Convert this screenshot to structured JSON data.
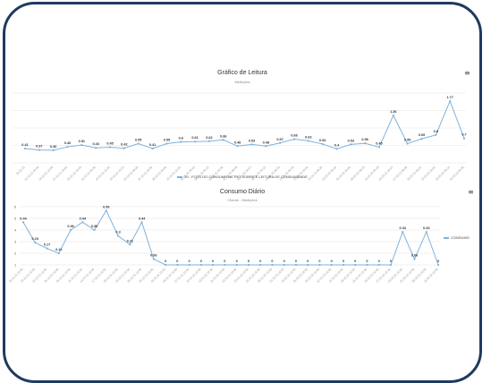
{
  "chart_data": [
    {
      "type": "line",
      "title": "Gráfico de Leitura",
      "subtitle": "Medições",
      "series": [
        {
          "name": "19 - FOTO DO CONSUMIVMETRO SOBRE E LEITURA DE CONSUMIDADE",
          "values": [
            0.41,
            0.37,
            0.36,
            0.46,
            0.51,
            0.43,
            0.45,
            0.42,
            0.55,
            0.41,
            0.55,
            0.6,
            0.61,
            0.62,
            0.66,
            0.48,
            0.53,
            0.48,
            0.57,
            0.68,
            0.63,
            0.54,
            0.4,
            0.53,
            0.56,
            0.45,
            1.36,
            0.55,
            0.69,
            0.8,
            1.77,
            0.7
          ]
        }
      ],
      "data_labels": [
        "0.41",
        "0.37",
        "0.36",
        "0.46",
        "0.51",
        "0.43",
        "0.45",
        "0.42",
        "0.55",
        "0.41",
        "0.55",
        "0.6",
        "0.61",
        "0.62",
        "0.66",
        "0.48",
        "0.53",
        "0.48",
        "0.57",
        "0.68",
        "0.63",
        "0.54",
        "0.4",
        "0.53",
        "0.56",
        "0.45",
        "1.36",
        "0.55",
        "0.69",
        "0.8",
        "1.77",
        "0.7"
      ],
      "categories": [
        "28.11.21",
        "01.12.21 09:06",
        "04.12.21 12:00",
        "07.12.21 13:02",
        "10.12.21 09:45",
        "13.12.21 09:30",
        "16.12.21 11:20",
        "19.12.21 12:14",
        "22.12.21 08:40",
        "25.12.21 10:20",
        "28.12.21 09:00",
        "31.12.21 11:05",
        "03.01.22 08:44",
        "06.01.22 09:12",
        "09.01.22 10:30",
        "12.01.22 08:59",
        "15.01.22 09:27",
        "18.01.22 10:12",
        "21.01.22 08:50",
        "24.01.22 09:33",
        "27.01.22 10:02",
        "30.01.22 08:20",
        "02.02.22 09:10",
        "05.02.22 10:40",
        "08.02.22 08:55",
        "11.02.22 09:18",
        "14.02.22 10:47",
        "17.02.22 08:39",
        "20.02.22 09:51",
        "23.02.22 10:05",
        "26.02.22 08:14",
        "01.03.22 09:30"
      ],
      "ylim": [
        0,
        2
      ],
      "grid": true,
      "legend": "bottom"
    },
    {
      "type": "line",
      "title": "Consumo Diário",
      "subtitle": "Cliente - Medições",
      "series": [
        {
          "name": "CONSUMO",
          "values": [
            0.44,
            0.23,
            0.17,
            0.12,
            0.36,
            0.44,
            0.36,
            0.56,
            0.3,
            0.21,
            0.44,
            0.06,
            0,
            0,
            0,
            0,
            0,
            0,
            0,
            0,
            0,
            0,
            0,
            0,
            0,
            0,
            0,
            0,
            0,
            0,
            0,
            0,
            0.34,
            0.06,
            0.34,
            0
          ]
        }
      ],
      "data_labels": [
        "0.44",
        "0.23",
        "0.17",
        "0.12",
        "0.36",
        "0.44",
        "0.36",
        "0.56",
        "0.3",
        "0.21",
        "0.44",
        "0.06",
        "0",
        "0",
        "0",
        "0",
        "0",
        "0",
        "0",
        "0",
        "0",
        "0",
        "0",
        "0",
        "0",
        "0",
        "0",
        "0",
        "0",
        "0",
        "0",
        "0",
        "0.34",
        "0.06",
        "0.34",
        "0"
      ],
      "categories": [
        "26.11.21 12:00",
        "29.11.21 12:00",
        "02.12.21 12:00",
        "05.12.21 12:00",
        "08.12.21 12:00",
        "11.12.21 12:00",
        "14.12.21 12:00",
        "17.12.21 12:00",
        "20.12.21 12:00",
        "23.12.21 12:00",
        "26.12.21 12:00",
        "29.12.21 12:00",
        "01.01.22 12:00",
        "04.01.22 12:00",
        "07.01.22 12:00",
        "10.01.22 12:00",
        "13.01.22 12:00",
        "16.01.22 12:00",
        "19.01.22 12:00",
        "22.01.22 12:00",
        "25.01.22 12:00",
        "28.01.22 12:00",
        "31.01.22 12:00",
        "03.02.22 12:00",
        "06.02.22 12:00",
        "09.02.22 12:00",
        "12.02.22 12:00",
        "15.02.22 12:00",
        "18.02.22 12:00",
        "21.02.22 12:00",
        "24.02.22 12:00",
        "27.02.22 12:00",
        "02.03.22 12:00",
        "05.03.22 12:00",
        "08.03.22 12:00",
        "11.03.22 12:00"
      ],
      "yticks": [
        "1",
        "2",
        "3",
        "4",
        "5",
        "6"
      ],
      "ylim": [
        0,
        0.6
      ],
      "grid": true,
      "legend": "right"
    }
  ],
  "menu_icon": "hamburger-menu-icon",
  "colors": {
    "line": "#7fb2dc",
    "frame": "#1f3a60",
    "grid": "#e6e6e6"
  }
}
